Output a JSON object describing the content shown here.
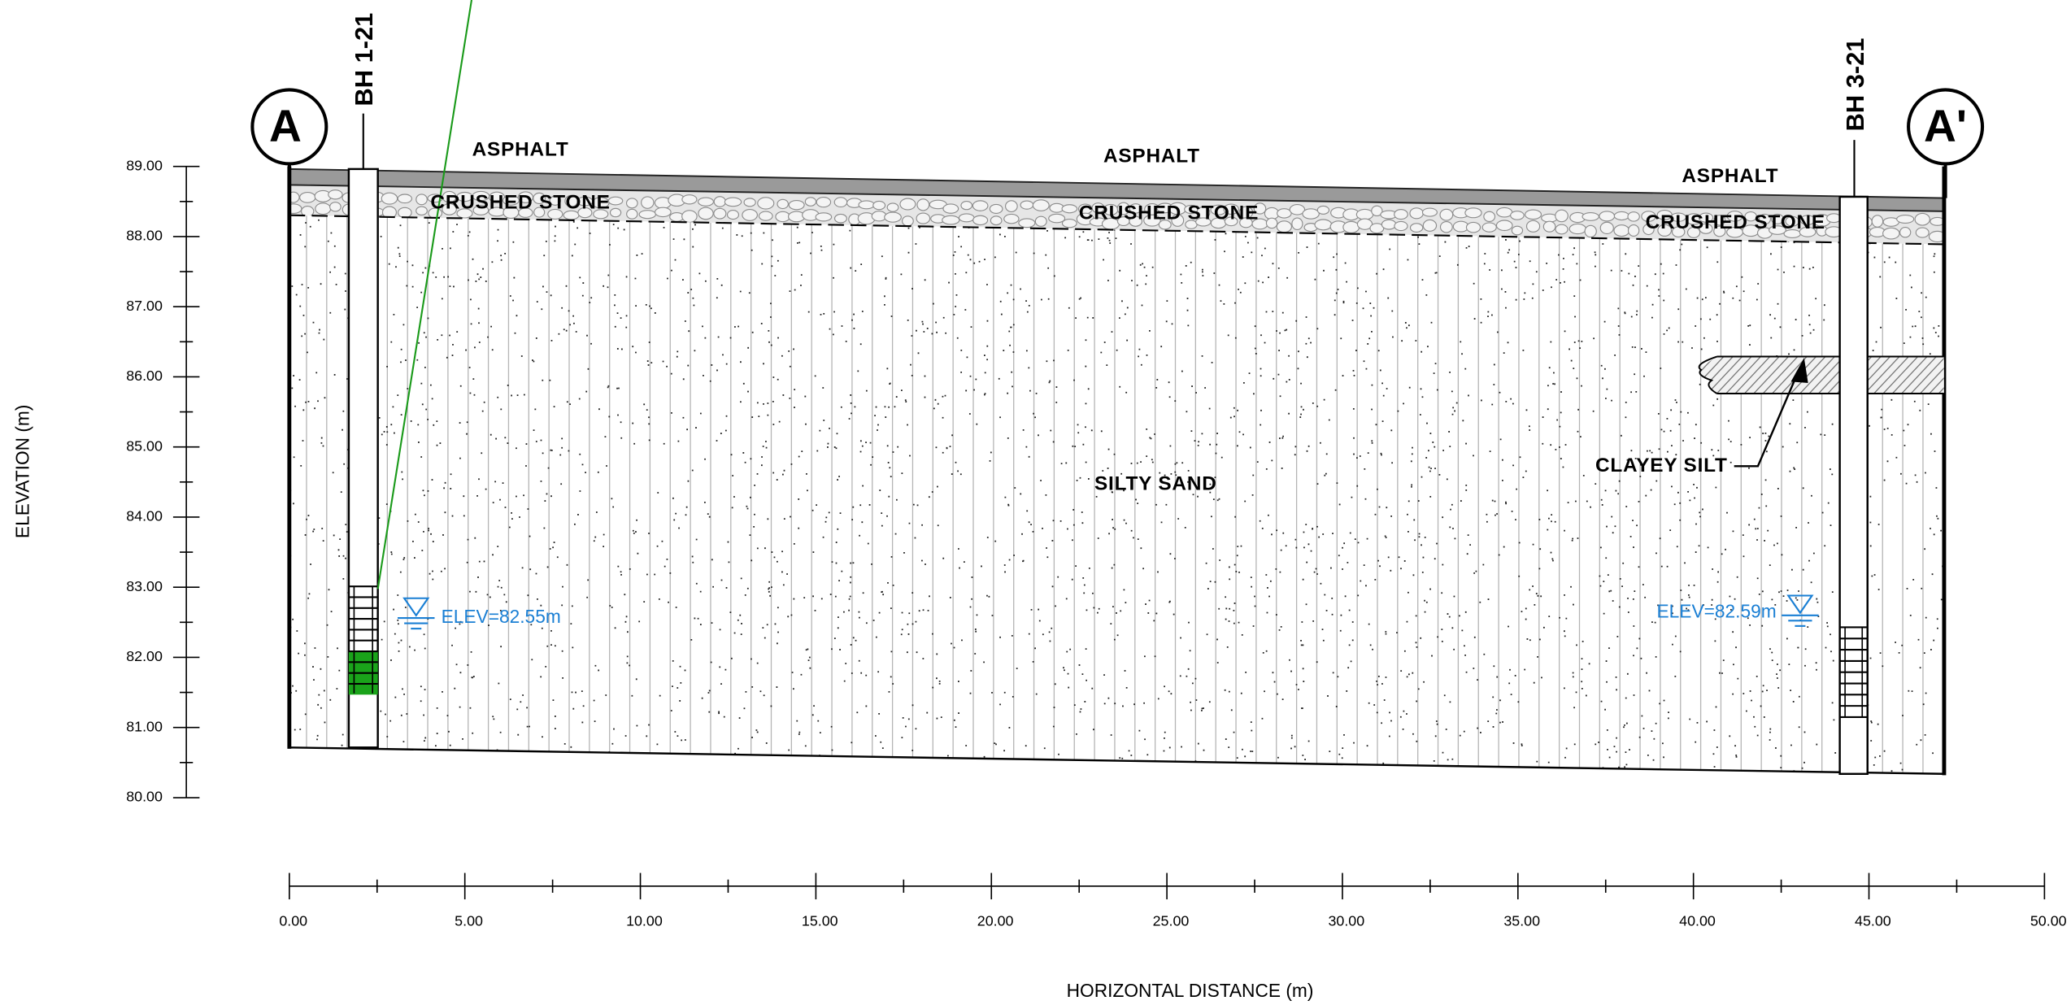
{
  "y_axis": {
    "label": "ELEVATION (m)",
    "lim": [
      80,
      89
    ],
    "ticks": [
      {
        "value": 89,
        "label": "89.00"
      },
      {
        "value": 88,
        "label": "88.00"
      },
      {
        "value": 87,
        "label": "87.00"
      },
      {
        "value": 86,
        "label": "86.00"
      },
      {
        "value": 85,
        "label": "85.00"
      },
      {
        "value": 84,
        "label": "84.00"
      },
      {
        "value": 83,
        "label": "83.00"
      },
      {
        "value": 82,
        "label": "82.00"
      },
      {
        "value": 81,
        "label": "81.00"
      },
      {
        "value": 80,
        "label": "80.00"
      }
    ]
  },
  "x_axis": {
    "label": "HORIZONTAL DISTANCE (m)",
    "lim": [
      0,
      50
    ],
    "ticks": [
      {
        "value": 0,
        "label": "0.00"
      },
      {
        "value": 5,
        "label": "5.00"
      },
      {
        "value": 10,
        "label": "10.00"
      },
      {
        "value": 15,
        "label": "15.00"
      },
      {
        "value": 20,
        "label": "20.00"
      },
      {
        "value": 25,
        "label": "25.00"
      },
      {
        "value": 30,
        "label": "30.00"
      },
      {
        "value": 35,
        "label": "35.00"
      },
      {
        "value": 40,
        "label": "40.00"
      },
      {
        "value": 45,
        "label": "45.00"
      },
      {
        "value": 50,
        "label": "50.00"
      }
    ]
  },
  "sections": [
    "A",
    "A'"
  ],
  "boreholes": [
    "BH 1-21",
    "BH 3-21"
  ],
  "labels": {
    "asphalt": [
      "ASPHALT",
      "ASPHALT",
      "ASPHALT"
    ],
    "crushed_stone": [
      "CRUSHED STONE",
      "CRUSHED STONE",
      "CRUSHED STONE"
    ],
    "silty_sand": "SILTY SAND",
    "clayey_silt": "CLAYEY SILT"
  },
  "water_levels": [
    "ELEV=82.55m",
    "ELEV=82.59m"
  ]
}
